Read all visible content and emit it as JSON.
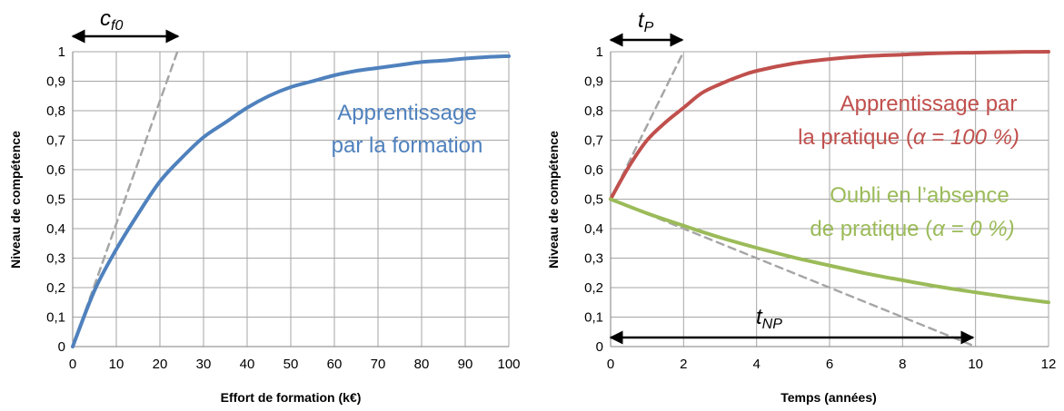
{
  "chart_data": [
    {
      "type": "line",
      "xlabel": "Effort de formation (k€)",
      "ylabel": "Niveau de compétence",
      "xlim": [
        0,
        100
      ],
      "ylim": [
        0,
        1
      ],
      "xticks": [
        "0",
        "10",
        "20",
        "30",
        "40",
        "50",
        "60",
        "70",
        "80",
        "90",
        "100"
      ],
      "yticks": [
        "0",
        "0,1",
        "0,2",
        "0,3",
        "0,4",
        "0,5",
        "0,6",
        "0,7",
        "0,8",
        "0,9",
        "1"
      ],
      "grid": true,
      "series": [
        {
          "color": "#4f81bd",
          "x": [
            0,
            5,
            10,
            15,
            20,
            25,
            30,
            35,
            40,
            45,
            50,
            55,
            60,
            65,
            70,
            75,
            80,
            85,
            90,
            95,
            100
          ],
          "y": [
            0,
            0.19,
            0.33,
            0.45,
            0.56,
            0.64,
            0.71,
            0.76,
            0.81,
            0.85,
            0.88,
            0.9,
            0.92,
            0.935,
            0.945,
            0.955,
            0.965,
            0.97,
            0.977,
            0.982,
            0.985
          ]
        },
        {
          "style": "dashed",
          "color": "#a6a6a6",
          "x": [
            0,
            24
          ],
          "y": [
            0,
            1
          ]
        }
      ],
      "annotations": {
        "curve_label_lines": [
          "Apprentissage",
          "par la formation"
        ],
        "param_label": "c",
        "param_sub": "f0",
        "arrow_range": [
          0,
          24
        ]
      }
    },
    {
      "type": "line",
      "xlabel": "Temps (années)",
      "ylabel": "Niveau de compétence",
      "xlim": [
        0,
        12
      ],
      "ylim": [
        0,
        1
      ],
      "xticks": [
        "0",
        "2",
        "4",
        "6",
        "8",
        "10",
        "12"
      ],
      "yticks": [
        "0",
        "0,1",
        "0,2",
        "0,3",
        "0,4",
        "0,5",
        "0,6",
        "0,7",
        "0,8",
        "0,9",
        "1"
      ],
      "grid": true,
      "series": [
        {
          "color": "#c0504d",
          "x": [
            0,
            0.5,
            1,
            1.5,
            2,
            2.5,
            3,
            3.5,
            4,
            5,
            6,
            7,
            8,
            9,
            10,
            11,
            12
          ],
          "y": [
            0.5,
            0.61,
            0.7,
            0.76,
            0.81,
            0.86,
            0.89,
            0.915,
            0.935,
            0.96,
            0.975,
            0.985,
            0.99,
            0.995,
            0.997,
            0.999,
            1.0
          ]
        },
        {
          "color": "#9bbb59",
          "x": [
            0,
            1,
            2,
            3,
            4,
            5,
            6,
            7,
            8,
            9,
            10,
            11,
            12
          ],
          "y": [
            0.5,
            0.452,
            0.41,
            0.37,
            0.335,
            0.303,
            0.275,
            0.248,
            0.225,
            0.203,
            0.184,
            0.166,
            0.15
          ]
        },
        {
          "style": "dashed",
          "color": "#a6a6a6",
          "x": [
            0,
            2
          ],
          "y": [
            0.5,
            1
          ]
        },
        {
          "style": "dashed",
          "color": "#a6a6a6",
          "x": [
            0,
            10
          ],
          "y": [
            0.5,
            0
          ]
        }
      ],
      "annotations": {
        "red_label_line1": "Apprentissage par",
        "red_label_line2_prefix": "la pratique (",
        "red_label_line2_italic": "α = 100 %)",
        "green_label_line1": "Oubli en l’absence",
        "green_label_line2_prefix": "de pratique (",
        "green_label_line2_italic": "α = 0 %)",
        "tp_label": "t",
        "tp_sub": "P",
        "tp_range": [
          0,
          2
        ],
        "tnp_label": "t",
        "tnp_sub": "NP",
        "tnp_range": [
          0,
          10
        ]
      }
    }
  ]
}
